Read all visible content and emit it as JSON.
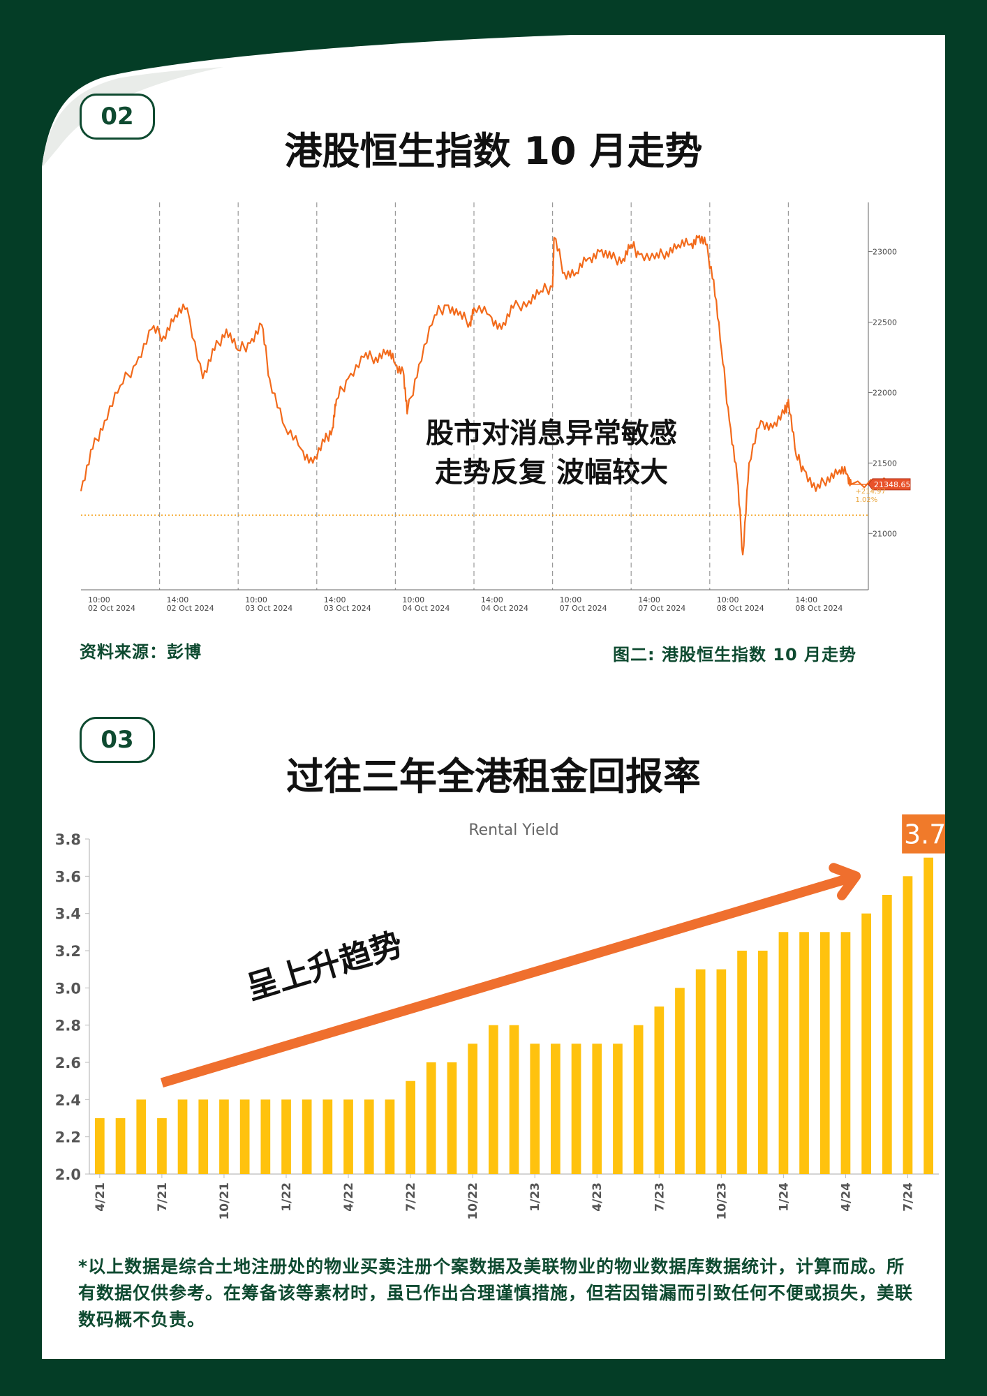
{
  "section1": {
    "number": "02",
    "title": "港股恒生指数 10 月走势",
    "overlay_line1": "股市对消息异常敏感",
    "overlay_line2": "走势反复 波幅较大",
    "source": "资料来源：彭博",
    "figure_caption": "图二: 港股恒生指数 10 月走势",
    "current_value_label": "21348.65",
    "change_label": "+214.97",
    "change_pct_label": "1.02%"
  },
  "section2": {
    "number": "03",
    "title": "过往三年全港租金回报率",
    "arrow_label": "呈上升趋势",
    "latest_value_label": "3.7"
  },
  "footnote": "*以上数据是综合土地注册处的物业买卖注册个案数据及美联物业的物业数据库数据统计，计算而成。所有数据仅供参考。在筹备该等素材时，虽已作出合理谨慎措施，但若因错漏而引致任何不便或损失，美联数码概不负责。",
  "colors": {
    "background": "#043d26",
    "line": "#f26a1b",
    "bar": "#ffc20e",
    "arrow": "#ef6f2e",
    "badge": "#f07a2a"
  },
  "chart_data": [
    {
      "type": "line",
      "title": "",
      "x_tick_labels": [
        [
          "10:00",
          "02 Oct 2024"
        ],
        [
          "14:00",
          "02 Oct 2024"
        ],
        [
          "10:00",
          "03 Oct 2024"
        ],
        [
          "14:00",
          "03 Oct 2024"
        ],
        [
          "10:00",
          "04 Oct 2024"
        ],
        [
          "14:00",
          "04 Oct 2024"
        ],
        [
          "10:00",
          "07 Oct 2024"
        ],
        [
          "14:00",
          "07 Oct 2024"
        ],
        [
          "10:00",
          "08 Oct 2024"
        ],
        [
          "14:00",
          "08 Oct 2024"
        ]
      ],
      "y_ticks": [
        21000,
        21500,
        22000,
        22500,
        23000
      ],
      "ylim": [
        20600,
        23300
      ],
      "reference_line": 21130,
      "last_value": 21348.65,
      "series": [
        {
          "values": [
            [
              0.0,
              21300
            ],
            [
              0.15,
              21600
            ],
            [
              0.3,
              21800
            ],
            [
              0.5,
              22050
            ],
            [
              0.7,
              22200
            ],
            [
              0.9,
              22450
            ],
            [
              1.05,
              22400
            ],
            [
              1.2,
              22550
            ],
            [
              1.35,
              22600
            ],
            [
              1.55,
              22100
            ],
            [
              1.7,
              22300
            ],
            [
              1.85,
              22450
            ],
            [
              2.0,
              22300
            ],
            [
              2.15,
              22350
            ],
            [
              2.3,
              22480
            ],
            [
              2.4,
              22100
            ],
            [
              2.6,
              21750
            ],
            [
              2.8,
              21600
            ],
            [
              2.95,
              21500
            ],
            [
              3.1,
              21650
            ],
            [
              3.2,
              21750
            ],
            [
              3.25,
              21950
            ],
            [
              3.4,
              22100
            ],
            [
              3.6,
              22250
            ],
            [
              3.75,
              22250
            ],
            [
              3.9,
              22300
            ],
            [
              4.0,
              22200
            ],
            [
              4.1,
              22150
            ],
            [
              4.15,
              21850
            ],
            [
              4.3,
              22200
            ],
            [
              4.5,
              22550
            ],
            [
              4.65,
              22620
            ],
            [
              4.8,
              22550
            ],
            [
              4.95,
              22500
            ],
            [
              5.0,
              22600
            ],
            [
              5.2,
              22550
            ],
            [
              5.35,
              22450
            ],
            [
              5.5,
              22600
            ],
            [
              5.7,
              22650
            ],
            [
              5.85,
              22720
            ],
            [
              6.0,
              22750
            ],
            [
              6.02,
              23100
            ],
            [
              6.15,
              22850
            ],
            [
              6.3,
              22850
            ],
            [
              6.45,
              22950
            ],
            [
              6.6,
              23000
            ],
            [
              6.75,
              22950
            ],
            [
              6.9,
              22950
            ],
            [
              7.0,
              23050
            ],
            [
              7.1,
              22980
            ],
            [
              7.3,
              22950
            ],
            [
              7.45,
              23000
            ],
            [
              7.6,
              23050
            ],
            [
              7.75,
              23050
            ],
            [
              7.85,
              23100
            ],
            [
              7.95,
              23050
            ],
            [
              8.05,
              22800
            ],
            [
              8.15,
              22300
            ],
            [
              8.25,
              21800
            ],
            [
              8.35,
              21400
            ],
            [
              8.42,
              20850
            ],
            [
              8.5,
              21500
            ],
            [
              8.65,
              21800
            ],
            [
              8.8,
              21750
            ],
            [
              8.95,
              21850
            ],
            [
              9.0,
              21950
            ],
            [
              9.1,
              21550
            ],
            [
              9.2,
              21450
            ],
            [
              9.35,
              21300
            ],
            [
              9.5,
              21400
            ],
            [
              9.65,
              21450
            ],
            [
              9.75,
              21420
            ],
            [
              9.8,
              21348.65
            ],
            [
              10.3,
              21348.65
            ]
          ]
        }
      ]
    },
    {
      "type": "bar",
      "title": "Rental Yield",
      "categories": [
        "4/21",
        "5/21",
        "6/21",
        "7/21",
        "8/21",
        "9/21",
        "10/21",
        "11/21",
        "12/21",
        "1/22",
        "2/22",
        "3/22",
        "4/22",
        "5/22",
        "6/22",
        "7/22",
        "8/22",
        "9/22",
        "10/22",
        "11/22",
        "12/22",
        "1/23",
        "2/23",
        "3/23",
        "4/23",
        "5/23",
        "6/23",
        "7/23",
        "8/23",
        "9/23",
        "10/23",
        "11/23",
        "12/23",
        "1/24",
        "2/24",
        "3/24",
        "4/24",
        "5/24",
        "6/24",
        "7/24",
        "8/24"
      ],
      "values": [
        2.3,
        2.3,
        2.4,
        2.3,
        2.4,
        2.4,
        2.4,
        2.4,
        2.4,
        2.4,
        2.4,
        2.4,
        2.4,
        2.4,
        2.4,
        2.5,
        2.6,
        2.6,
        2.7,
        2.8,
        2.8,
        2.7,
        2.7,
        2.7,
        2.7,
        2.7,
        2.8,
        2.9,
        3.0,
        3.1,
        3.1,
        3.2,
        3.2,
        3.3,
        3.3,
        3.3,
        3.3,
        3.4,
        3.5,
        3.6,
        3.7
      ],
      "x_tick_labels": [
        "4/21",
        "7/21",
        "10/21",
        "1/22",
        "4/22",
        "7/22",
        "10/22",
        "1/23",
        "4/23",
        "7/23",
        "10/23",
        "1/24",
        "4/24",
        "7/24"
      ],
      "y_ticks": [
        "2.0",
        "2.2",
        "2.4",
        "2.6",
        "2.8",
        "3.0",
        "3.2",
        "3.4",
        "3.6",
        "3.8"
      ],
      "ylim": [
        2.0,
        3.8
      ],
      "grid": false
    }
  ]
}
